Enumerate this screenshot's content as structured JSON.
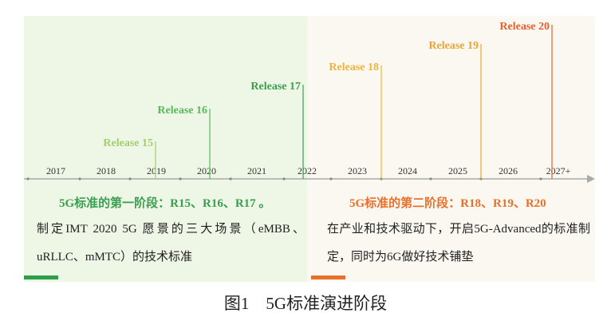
{
  "timeline": {
    "years": [
      "2017",
      "2018",
      "2019",
      "2020",
      "2021",
      "2022",
      "2023",
      "2024",
      "2025",
      "2026",
      "2027+"
    ],
    "releases": [
      "Release 15",
      "Release 16",
      "Release 17",
      "Release 18",
      "Release 19",
      "Release 20"
    ]
  },
  "phases": [
    {
      "heading": "5G标准的第一阶段：R15、R16、R17 。",
      "description": "制定IMT 2020 5G 愿景的三大场景（eMBB、uRLLC、mMTC）的技术标准"
    },
    {
      "heading": "5G标准的第二阶段：R18、R19、R20",
      "description": "在产业和技术驱动下，开启5G-Advanced的标准制定，同时为6G做好技术铺垫"
    }
  ],
  "caption": "图1　5G标准演进阶段"
}
